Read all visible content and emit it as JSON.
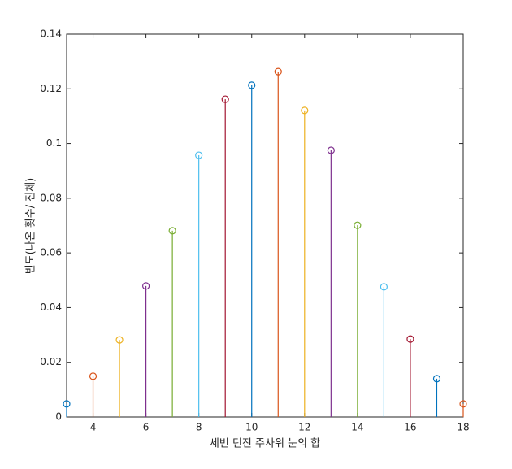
{
  "chart_data": {
    "type": "stem",
    "xlabel": "세번 던진 주사위 눈의 합",
    "ylabel": "빈도(나온 횟수/ 전체)",
    "x": [
      3,
      4,
      5,
      6,
      7,
      8,
      9,
      10,
      11,
      12,
      13,
      14,
      15,
      16,
      17,
      18
    ],
    "values": [
      0.0048,
      0.0149,
      0.0282,
      0.0479,
      0.0681,
      0.0957,
      0.1162,
      0.1213,
      0.1263,
      0.1121,
      0.0975,
      0.0701,
      0.0476,
      0.0285,
      0.014,
      0.0048
    ],
    "colors": [
      "#0072BD",
      "#D95319",
      "#EDB120",
      "#7E2F8E",
      "#77AC30",
      "#4DBEEE",
      "#A2142F",
      "#0072BD",
      "#D95319",
      "#EDB120",
      "#7E2F8E",
      "#77AC30",
      "#4DBEEE",
      "#A2142F",
      "#0072BD",
      "#D95319"
    ],
    "xlim": [
      3,
      18
    ],
    "ylim": [
      0,
      0.14
    ],
    "xticks": [
      4,
      6,
      8,
      10,
      12,
      14,
      16,
      18
    ],
    "yticks": [
      0,
      0.02,
      0.04,
      0.06,
      0.08,
      0.1,
      0.12,
      0.14
    ],
    "box": true
  }
}
